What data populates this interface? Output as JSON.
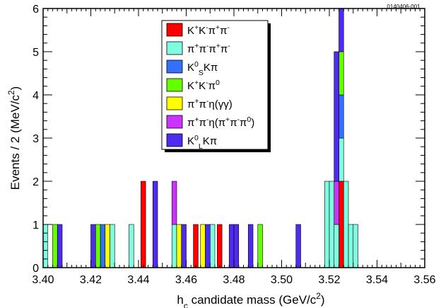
{
  "figure_id": "0140406-001",
  "chart_data": {
    "type": "bar",
    "stacked": true,
    "xlabel_parts": [
      "h",
      "c",
      " candidate mass (GeV/c",
      "2",
      ")"
    ],
    "ylabel_parts": [
      "Events / 2 (MeV/c",
      "2",
      ")"
    ],
    "xlim": [
      3.4,
      3.56
    ],
    "ylim": [
      0,
      6
    ],
    "bin_width": 0.002,
    "x_ticks": [
      "3.40",
      "3.42",
      "3.44",
      "3.46",
      "3.48",
      "3.50",
      "3.52",
      "3.54",
      "3.56"
    ],
    "y_ticks": [
      "0",
      "1",
      "2",
      "3",
      "4",
      "5",
      "6"
    ],
    "grid": false,
    "legend_position": "top-center",
    "series": [
      {
        "label_parts": [
          [
            "K",
            "n"
          ],
          [
            "+",
            "sup"
          ],
          [
            "K",
            "n"
          ],
          [
            "-",
            "sup"
          ],
          [
            "π",
            "n"
          ],
          [
            "+",
            "sup"
          ],
          [
            "π",
            "n"
          ],
          [
            "-",
            "sup"
          ]
        ],
        "color": "#ff0000",
        "bins": [
          [
            3.442,
            2
          ],
          [
            3.464,
            1
          ],
          [
            3.474,
            1
          ],
          [
            3.525,
            2
          ]
        ]
      },
      {
        "label_parts": [
          [
            "π",
            "n"
          ],
          [
            "+",
            "sup"
          ],
          [
            "π",
            "n"
          ],
          [
            "-",
            "sup"
          ],
          [
            "π",
            "n"
          ],
          [
            "+",
            "sup"
          ],
          [
            "π",
            "n"
          ],
          [
            "-",
            "sup"
          ]
        ],
        "color": "#80ffe0",
        "bins": [
          [
            3.401,
            1
          ],
          [
            3.429,
            1
          ],
          [
            3.437,
            1
          ],
          [
            3.455,
            1
          ],
          [
            3.471,
            1
          ],
          [
            3.519,
            2
          ],
          [
            3.521,
            2
          ],
          [
            3.523,
            1
          ],
          [
            3.525,
            1
          ],
          [
            3.527,
            2
          ],
          [
            3.529,
            1
          ],
          [
            3.531,
            1
          ]
        ]
      },
      {
        "label_parts": [
          [
            "K",
            "n"
          ],
          [
            "0",
            "sup"
          ],
          [
            "S",
            "sub"
          ],
          [
            "Kπ",
            "n"
          ]
        ],
        "color": "#3370ff",
        "bins": [
          [
            3.425,
            1
          ],
          [
            3.525,
            1
          ]
        ]
      },
      {
        "label_parts": [
          [
            "K",
            "n"
          ],
          [
            "+",
            "sup"
          ],
          [
            "K",
            "n"
          ],
          [
            "-",
            "sup"
          ],
          [
            "π",
            "n"
          ],
          [
            "0",
            "sup"
          ]
        ],
        "color": "#66ff00",
        "bins": [
          [
            3.405,
            1
          ],
          [
            3.423,
            1
          ],
          [
            3.491,
            1
          ],
          [
            3.525,
            1
          ]
        ]
      },
      {
        "label_parts": [
          [
            "π",
            "n"
          ],
          [
            "+",
            "sup"
          ],
          [
            "π",
            "n"
          ],
          [
            "-",
            "sup"
          ],
          [
            "η(γγ)",
            "n"
          ]
        ],
        "color": "#ffff00",
        "bins": [
          [
            3.427,
            1
          ],
          [
            3.457,
            1
          ],
          [
            3.467,
            1
          ]
        ]
      },
      {
        "label_parts": [
          [
            "π",
            "n"
          ],
          [
            "+",
            "sup"
          ],
          [
            "π",
            "n"
          ],
          [
            "-",
            "sup"
          ],
          [
            "η(π",
            "n"
          ],
          [
            "+",
            "sup"
          ],
          [
            "π",
            "n"
          ],
          [
            "-",
            "sup"
          ],
          [
            "π",
            "n"
          ],
          [
            "0",
            "sup"
          ],
          [
            ")",
            "n"
          ]
        ],
        "color": "#cc33ff",
        "bins": [
          [
            3.455,
            1
          ],
          [
            3.523,
            1
          ]
        ]
      },
      {
        "label_parts": [
          [
            "K",
            "n"
          ],
          [
            "0",
            "sup"
          ],
          [
            "L",
            "sub"
          ],
          [
            "Kπ",
            "n"
          ]
        ],
        "color": "#4f2af0",
        "bins": [
          [
            3.407,
            1
          ],
          [
            3.421,
            1
          ],
          [
            3.447,
            2
          ],
          [
            3.459,
            1
          ],
          [
            3.469,
            1
          ],
          [
            3.479,
            1
          ],
          [
            3.481,
            1
          ],
          [
            3.487,
            1
          ],
          [
            3.507,
            1
          ],
          [
            3.523,
            3
          ],
          [
            3.525,
            1
          ]
        ]
      }
    ]
  }
}
